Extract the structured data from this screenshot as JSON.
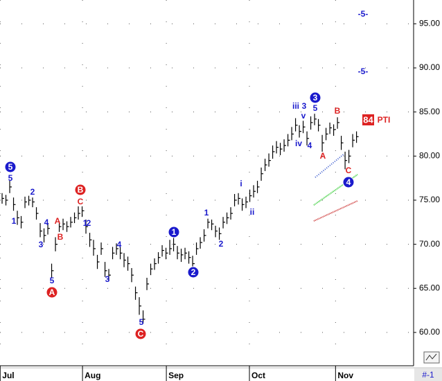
{
  "chart_data": {
    "type": "hlc",
    "color": "#000000",
    "grid": true,
    "ylim": [
      56.3,
      97.7
    ],
    "yticks": [
      {
        "value": 60,
        "label": "60.00"
      },
      {
        "value": 65,
        "label": "65.00"
      },
      {
        "value": 70,
        "label": "70.00"
      },
      {
        "value": 75,
        "label": "75.00"
      },
      {
        "value": 80,
        "label": "80.00"
      },
      {
        "value": 85,
        "label": "85.00"
      },
      {
        "value": 90,
        "label": "90.00"
      },
      {
        "value": 95,
        "label": "95.00"
      }
    ],
    "xlim": [
      -0.55,
      107.8
    ],
    "xticks": [
      {
        "value": -0.5,
        "label": "Jul"
      },
      {
        "value": 21.1,
        "label": "Aug"
      },
      {
        "value": 43.1,
        "label": "Sep"
      },
      {
        "value": 64.9,
        "label": "Oct"
      },
      {
        "value": 87.5,
        "label": "Nov"
      }
    ],
    "high": [
      75.8,
      75.6,
      77.2,
      75.3,
      73.8,
      73.2,
      75.4,
      75.5,
      75.3,
      74.2,
      72.4,
      71.8,
      72.4,
      67.8,
      70.8,
      72.6,
      72.9,
      72.6,
      73.1,
      73.6,
      74.3,
      74.3,
      72.8,
      71.3,
      70.5,
      68.8,
      70.2,
      68.0,
      67.2,
      69.7,
      70.1,
      69.7,
      69.0,
      68.6,
      67.3,
      65.2,
      64.0,
      62.5,
      66.2,
      67.8,
      68.4,
      69.1,
      69.9,
      69.6,
      70.5,
      71.0,
      69.8,
      69.5,
      69.6,
      69.2,
      68.7,
      70.2,
      70.8,
      71.7,
      72.9,
      72.8,
      72.1,
      71.9,
      73.1,
      73.6,
      74.2,
      75.7,
      75.8,
      75.2,
      75.4,
      76.2,
      76.7,
      77.2,
      78.7,
      79.7,
      80.3,
      81.2,
      81.7,
      81.5,
      81.9,
      82.5,
      83.3,
      84.3,
      83.5,
      84.0,
      82.8,
      84.5,
      84.8,
      84.2,
      82.4,
      83.2,
      83.8,
      83.6,
      84.4,
      82.3,
      80.5,
      80.7,
      82.5,
      82.8
    ],
    "low": [
      74.6,
      74.4,
      75.8,
      73.8,
      72.2,
      71.8,
      74.1,
      74.4,
      74.2,
      72.8,
      70.8,
      70.2,
      71.1,
      66.2,
      69.2,
      71.4,
      71.6,
      71.4,
      71.9,
      72.4,
      72.8,
      73.1,
      71.2,
      69.7,
      68.7,
      67.2,
      68.8,
      66.3,
      65.8,
      68.3,
      68.8,
      68.3,
      67.4,
      67.0,
      65.7,
      63.7,
      62.0,
      61.0,
      64.8,
      66.5,
      67.1,
      67.8,
      68.6,
      68.3,
      68.8,
      69.2,
      68.3,
      68.0,
      68.3,
      67.8,
      67.2,
      68.8,
      69.5,
      70.3,
      71.8,
      71.6,
      70.8,
      70.5,
      71.8,
      72.3,
      72.8,
      74.3,
      74.5,
      73.8,
      74.1,
      74.8,
      75.3,
      75.8,
      77.2,
      78.3,
      78.8,
      79.7,
      80.3,
      80.1,
      80.5,
      81.1,
      81.8,
      82.8,
      82.1,
      82.6,
      81.2,
      83.0,
      83.5,
      82.8,
      80.5,
      81.8,
      82.5,
      82.3,
      83.1,
      80.7,
      78.5,
      79.2,
      81.0,
      81.5
    ],
    "close": [
      75.2,
      75.0,
      76.5,
      74.5,
      73.0,
      72.5,
      74.8,
      75.0,
      74.8,
      73.5,
      71.5,
      71.0,
      71.8,
      67.0,
      70.0,
      72.0,
      72.3,
      72.0,
      72.5,
      73.0,
      73.5,
      73.8,
      72.0,
      70.5,
      69.5,
      68.0,
      69.5,
      67.0,
      66.5,
      69.0,
      69.5,
      69.0,
      68.2,
      67.8,
      66.5,
      64.5,
      63.0,
      61.5,
      65.5,
      67.2,
      67.8,
      68.5,
      69.3,
      69.0,
      69.5,
      70.0,
      69.0,
      68.8,
      69.0,
      68.5,
      67.8,
      69.5,
      70.2,
      71.0,
      72.5,
      72.3,
      71.5,
      71.2,
      72.5,
      73.0,
      73.5,
      75.0,
      75.2,
      74.5,
      74.8,
      75.5,
      76.0,
      76.5,
      78.0,
      79.0,
      79.5,
      80.5,
      81.0,
      80.8,
      81.2,
      81.8,
      82.5,
      83.5,
      82.8,
      83.3,
      82.0,
      83.8,
      84.2,
      83.5,
      81.5,
      82.5,
      83.2,
      83.0,
      83.8,
      81.5,
      79.5,
      80.0,
      81.8,
      82.2
    ],
    "annotations": [
      {
        "text": "5",
        "color": "#1a1acc",
        "circle": true
      },
      {
        "text": "5",
        "color": "#1a1acc"
      },
      {
        "text": "2",
        "color": "#1a1acc"
      },
      {
        "text": "1",
        "color": "#1a1acc"
      },
      {
        "text": "4",
        "color": "#1a1acc"
      },
      {
        "text": "3",
        "color": "#1a1acc"
      },
      {
        "text": "A",
        "color": "#dd2222"
      },
      {
        "text": "B",
        "color": "#dd2222"
      },
      {
        "text": "5",
        "color": "#1a1acc"
      },
      {
        "text": "A",
        "color": "#dd2222",
        "circle": true
      },
      {
        "text": "B",
        "color": "#dd2222",
        "circle": true
      },
      {
        "text": "C",
        "color": "#dd2222"
      },
      {
        "text": "1",
        "color": "#1a1acc"
      },
      {
        "text": "2",
        "color": "#1a1acc"
      },
      {
        "text": "4",
        "color": "#1a1acc"
      },
      {
        "text": "3",
        "color": "#1a1acc"
      },
      {
        "text": "5",
        "color": "#1a1acc"
      },
      {
        "text": "C",
        "color": "#dd2222",
        "circle": true
      },
      {
        "text": "1",
        "color": "#1a1acc",
        "circle": true
      },
      {
        "text": "2",
        "color": "#1a1acc",
        "circle": true
      },
      {
        "text": "1",
        "color": "#1a1acc"
      },
      {
        "text": "2",
        "color": "#1a1acc"
      },
      {
        "text": "i",
        "color": "#1a1acc"
      },
      {
        "text": "ii",
        "color": "#1a1acc"
      },
      {
        "text": "iii",
        "color": "#1a1acc"
      },
      {
        "text": "iv",
        "color": "#1a1acc"
      },
      {
        "text": "3",
        "color": "#1a1acc"
      },
      {
        "text": "v",
        "color": "#1a1acc"
      },
      {
        "text": "4",
        "color": "#1a1acc"
      },
      {
        "text": "3",
        "color": "#1a1acc",
        "circle": true
      },
      {
        "text": "5",
        "color": "#1a1acc"
      },
      {
        "text": "A",
        "color": "#dd2222"
      },
      {
        "text": "B",
        "color": "#dd2222"
      },
      {
        "text": "C",
        "color": "#dd2222"
      },
      {
        "text": "4",
        "color": "#1a1acc",
        "circle": true
      },
      {
        "text": "-5-",
        "color": "#1a1acc"
      },
      {
        "text": "-5-",
        "color": "#1a1acc"
      },
      {
        "text": "PTI",
        "color": "#dd2222"
      }
    ],
    "pti_value": 84,
    "corner_label": "#-1"
  }
}
